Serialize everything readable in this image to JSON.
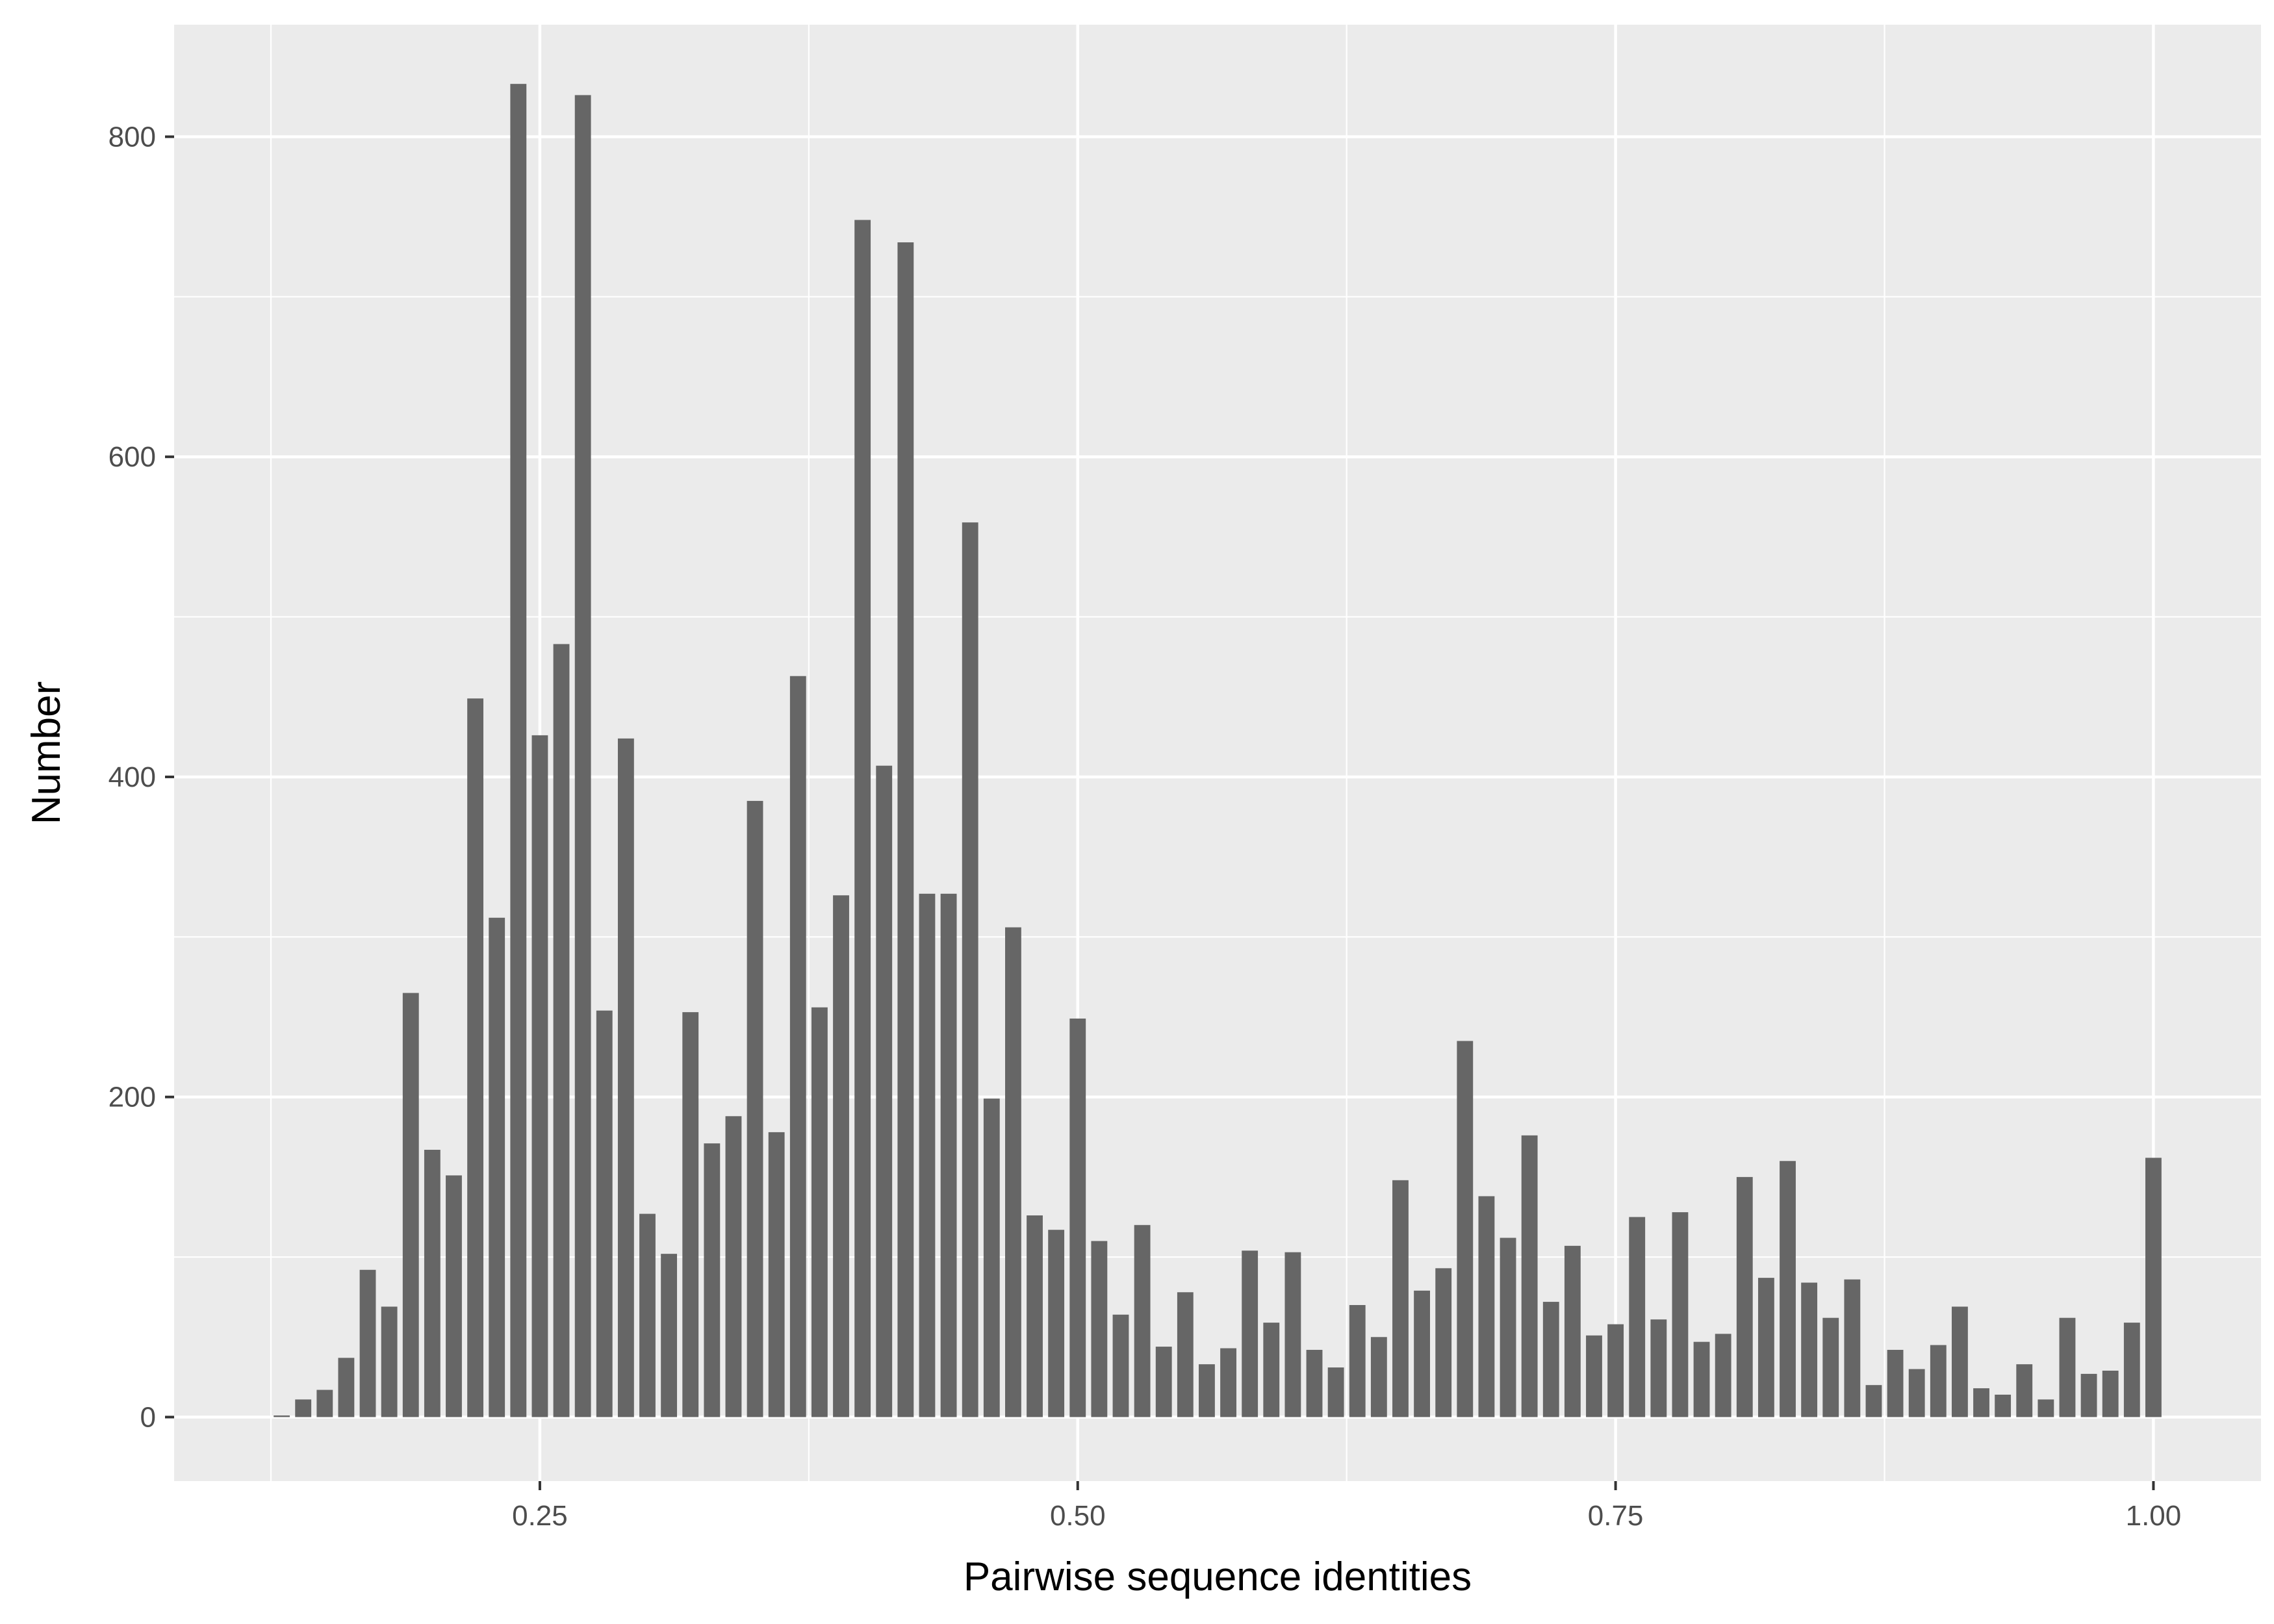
{
  "chart_data": {
    "type": "bar",
    "xlabel": "Pairwise sequence identities",
    "ylabel": "Number",
    "xlim": [
      0.08,
      1.05
    ],
    "ylim": [
      -40,
      870
    ],
    "x_ticks": [
      0.25,
      0.5,
      0.75,
      1.0
    ],
    "x_tick_labels": [
      "0.25",
      "0.50",
      "0.75",
      "1.00"
    ],
    "y_ticks": [
      0,
      200,
      400,
      600,
      800
    ],
    "y_tick_labels": [
      "0",
      "200",
      "400",
      "600",
      "800"
    ],
    "grid": true,
    "bar_width": 0.0075,
    "x": [
      0.13,
      0.14,
      0.15,
      0.16,
      0.17,
      0.18,
      0.19,
      0.2,
      0.21,
      0.22,
      0.23,
      0.24,
      0.25,
      0.26,
      0.27,
      0.28,
      0.29,
      0.3,
      0.31,
      0.32,
      0.33,
      0.34,
      0.35,
      0.36,
      0.37,
      0.38,
      0.39,
      0.4,
      0.41,
      0.42,
      0.43,
      0.44,
      0.45,
      0.46,
      0.47,
      0.48,
      0.49,
      0.5,
      0.51,
      0.52,
      0.53,
      0.54,
      0.55,
      0.56,
      0.57,
      0.58,
      0.59,
      0.6,
      0.61,
      0.62,
      0.63,
      0.64,
      0.65,
      0.66,
      0.67,
      0.68,
      0.69,
      0.7,
      0.71,
      0.72,
      0.73,
      0.74,
      0.75,
      0.76,
      0.77,
      0.78,
      0.79,
      0.8,
      0.81,
      0.82,
      0.83,
      0.84,
      0.85,
      0.86,
      0.87,
      0.88,
      0.89,
      0.9,
      0.91,
      0.92,
      0.93,
      0.94,
      0.95,
      0.96,
      0.97,
      0.98,
      0.99,
      1.0
    ],
    "values": [
      1,
      11,
      17,
      37,
      92,
      69,
      265,
      167,
      151,
      449,
      312,
      833,
      426,
      483,
      826,
      254,
      424,
      127,
      102,
      253,
      171,
      188,
      385,
      178,
      463,
      256,
      326,
      748,
      407,
      734,
      327,
      327,
      559,
      199,
      306,
      126,
      117,
      249,
      110,
      64,
      120,
      44,
      78,
      33,
      43,
      104,
      59,
      103,
      42,
      31,
      70,
      50,
      148,
      79,
      93,
      235,
      138,
      112,
      176,
      72,
      107,
      51,
      58,
      125,
      61,
      128,
      47,
      52,
      150,
      87,
      160,
      84,
      62,
      86,
      20,
      42,
      30,
      45,
      69,
      18,
      14,
      33,
      11,
      62,
      27,
      29,
      59,
      162
    ]
  },
  "colors": {
    "panel_background": "#ebebeb",
    "grid_major": "#ffffff",
    "bar_fill": "#666666",
    "tick_mark": "#333333"
  }
}
